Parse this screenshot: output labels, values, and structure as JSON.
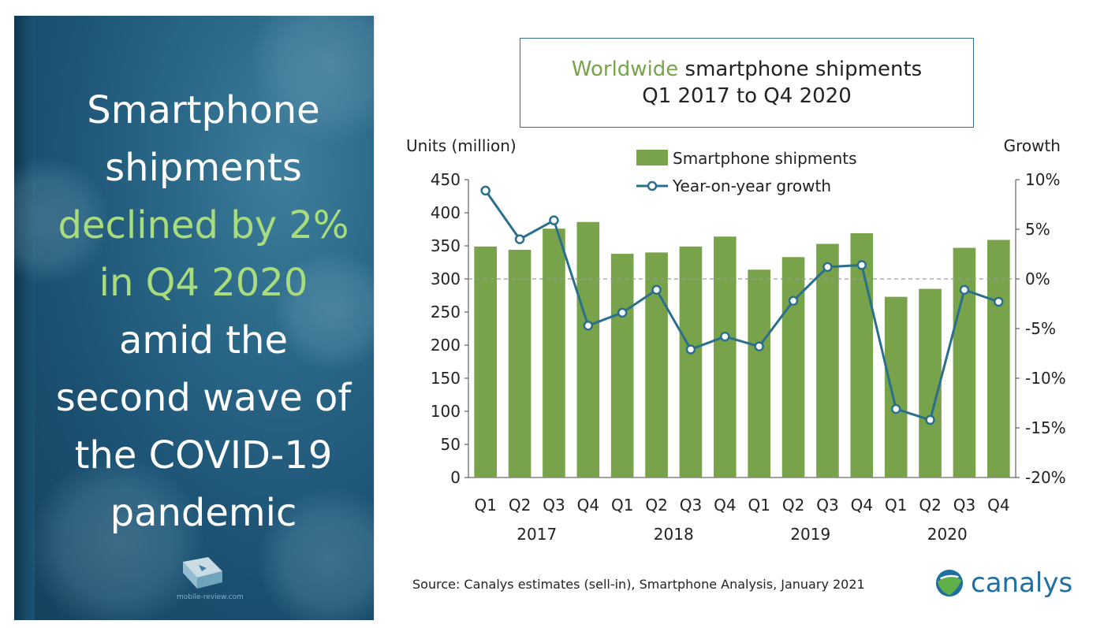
{
  "headline": {
    "line1": "Smartphone",
    "line2": "shipments",
    "line3": "declined by 2%",
    "line4": "in Q4 2020",
    "line5": "amid the",
    "line6": "second wave of",
    "line7": "the COVID-19",
    "line8": "pandemic"
  },
  "watermark": {
    "text": "mobile-review.com"
  },
  "title": {
    "accent": "Worldwide",
    "rest": " smartphone shipments",
    "line2": "Q1 2017 to Q4 2020"
  },
  "source": "Source: Canalys estimates (sell-in), Smartphone Analysis, January 2021",
  "logo": {
    "text": "canalys"
  },
  "colors": {
    "bar": "#78a34a",
    "line": "#2a6f8c",
    "accent_green": "#a9dc7d",
    "title_accent": "#78a34a"
  },
  "chart_data": {
    "type": "bar",
    "categories": [
      "Q1",
      "Q2",
      "Q3",
      "Q4",
      "Q1",
      "Q2",
      "Q3",
      "Q4",
      "Q1",
      "Q2",
      "Q3",
      "Q4",
      "Q1",
      "Q2",
      "Q3",
      "Q4"
    ],
    "years": [
      {
        "label": "2017",
        "quarters": [
          0,
          3
        ]
      },
      {
        "label": "2018",
        "quarters": [
          4,
          7
        ]
      },
      {
        "label": "2019",
        "quarters": [
          8,
          11
        ]
      },
      {
        "label": "2020",
        "quarters": [
          12,
          15
        ]
      }
    ],
    "series": [
      {
        "name": "Smartphone shipments",
        "type": "bar",
        "axis": "left",
        "values": [
          349,
          344,
          376,
          386,
          338,
          340,
          349,
          364,
          314,
          333,
          353,
          369,
          273,
          285,
          347,
          359
        ]
      },
      {
        "name": "Year-on-year growth",
        "type": "line",
        "axis": "right",
        "values": [
          8.9,
          4.0,
          5.9,
          -4.7,
          -3.4,
          -1.1,
          -7.1,
          -5.8,
          -6.8,
          -2.2,
          1.2,
          1.4,
          -13.1,
          -14.2,
          -1.1,
          -2.3
        ]
      }
    ],
    "ylabel_left": "Units (million)",
    "ylabel_right": "Growth",
    "ylim_left": [
      0,
      450
    ],
    "yticks_left": [
      "0",
      "50",
      "100",
      "150",
      "200",
      "250",
      "300",
      "350",
      "400",
      "450"
    ],
    "ylim_right": [
      -20,
      10
    ],
    "yticks_right": [
      "-20%",
      "-15%",
      "-10%",
      "-5%",
      "0%",
      "5%",
      "10%"
    ],
    "zero_reference_line": "dashed",
    "grid": false,
    "legend_position": "top-center"
  }
}
